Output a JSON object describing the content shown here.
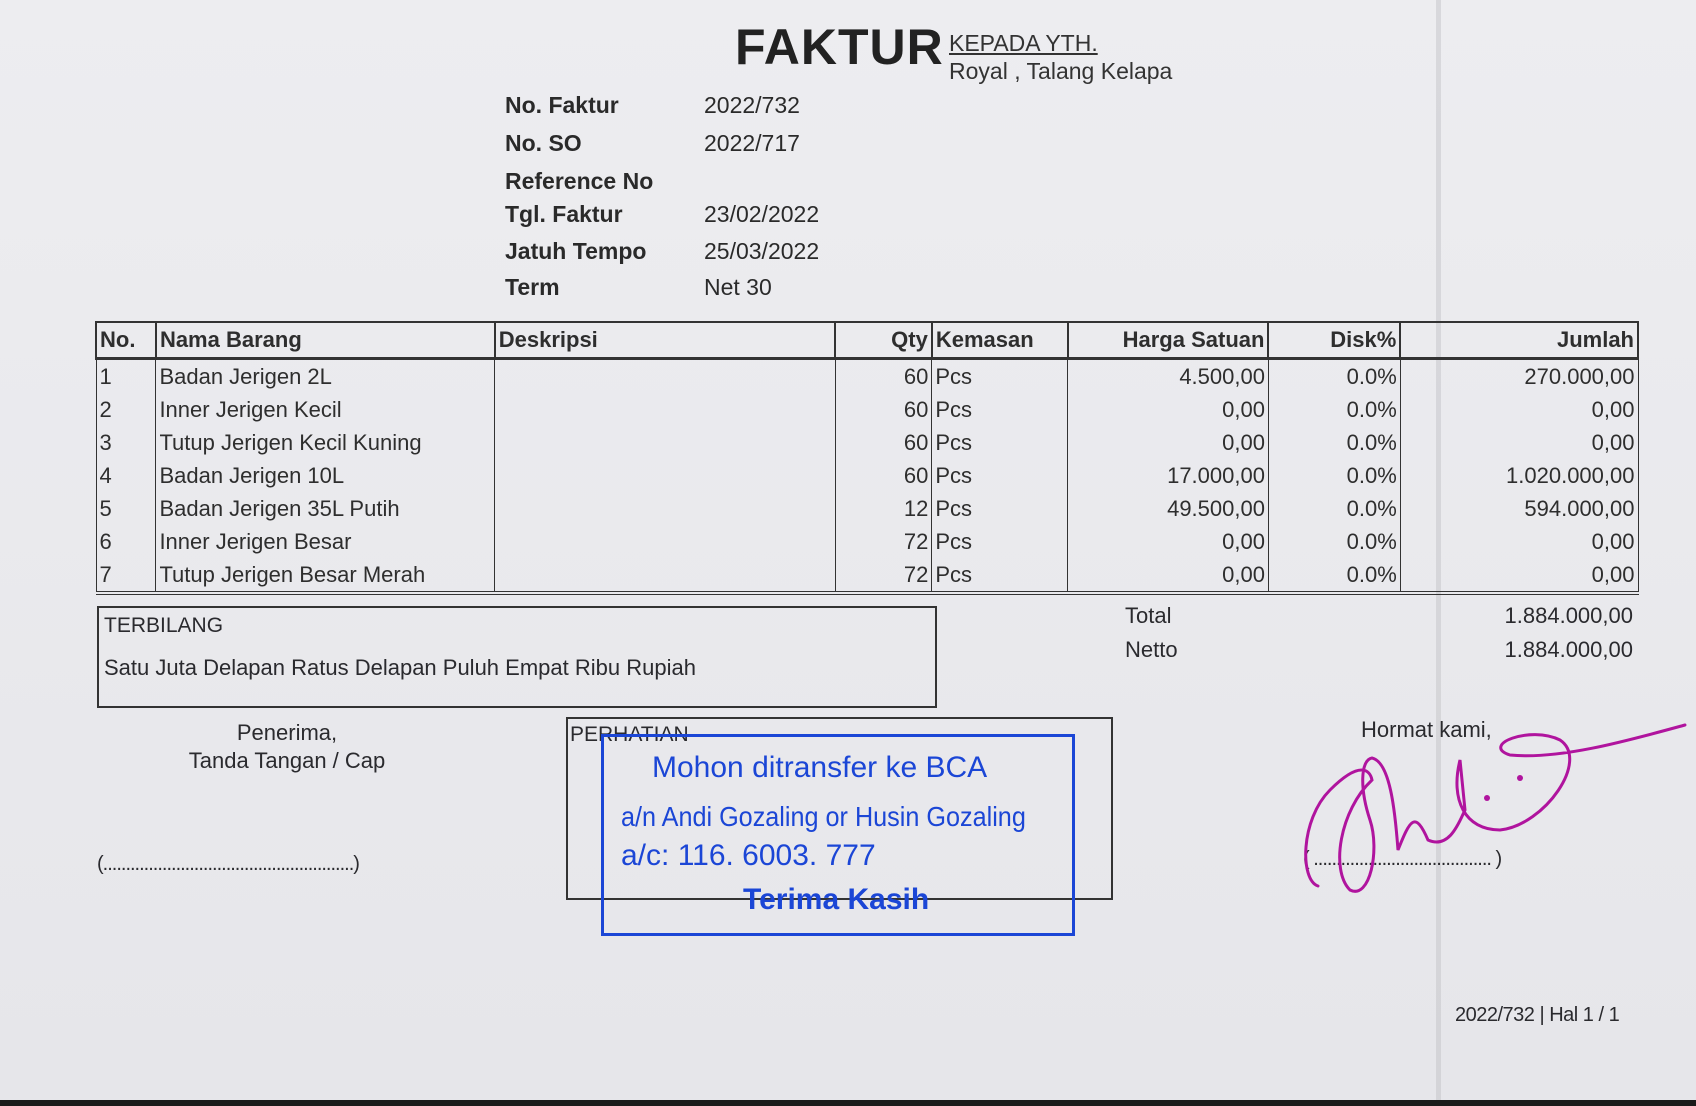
{
  "header": {
    "title": "FAKTUR",
    "recipient_label": "KEPADA YTH.",
    "recipient": "Royal , Talang Kelapa"
  },
  "meta": [
    {
      "label": "No. Faktur",
      "value": "2022/732"
    },
    {
      "label": "No. SO",
      "value": "2022/717"
    },
    {
      "label": "Reference No",
      "value": ""
    },
    {
      "label": "Tgl. Faktur",
      "value": "23/02/2022"
    },
    {
      "label": "Jatuh Tempo",
      "value": "25/03/2022"
    },
    {
      "label": "Term",
      "value": "Net 30"
    }
  ],
  "table": {
    "headers": [
      "No.",
      "Nama Barang",
      "Deskripsi",
      "Qty",
      "Kemasan",
      "Harga Satuan",
      "Disk%",
      "Jumlah"
    ],
    "rows": [
      [
        "1",
        "Badan Jerigen 2L",
        "",
        "60",
        "Pcs",
        "4.500,00",
        "0.0%",
        "270.000,00"
      ],
      [
        "2",
        "Inner Jerigen Kecil",
        "",
        "60",
        "Pcs",
        "0,00",
        "0.0%",
        "0,00"
      ],
      [
        "3",
        "Tutup Jerigen Kecil Kuning",
        "",
        "60",
        "Pcs",
        "0,00",
        "0.0%",
        "0,00"
      ],
      [
        "4",
        "Badan Jerigen 10L",
        "",
        "60",
        "Pcs",
        "17.000,00",
        "0.0%",
        "1.020.000,00"
      ],
      [
        "5",
        "Badan Jerigen 35L Putih",
        "",
        "12",
        "Pcs",
        "49.500,00",
        "0.0%",
        "594.000,00"
      ],
      [
        "6",
        "Inner Jerigen Besar",
        "",
        "72",
        "Pcs",
        "0,00",
        "0.0%",
        "0,00"
      ],
      [
        "7",
        "Tutup Jerigen Besar Merah",
        "",
        "72",
        "Pcs",
        "0,00",
        "0.0%",
        "0,00"
      ]
    ]
  },
  "terbilang": {
    "label": "TERBILANG",
    "text": "Satu Juta Delapan Ratus Delapan Puluh Empat Ribu Rupiah"
  },
  "totals": {
    "total_label": "Total",
    "total_value": "1.884.000,00",
    "netto_label": "Netto",
    "netto_value": "1.884.000,00"
  },
  "receiver": {
    "line1": "Penerima,",
    "line2": "Tanda Tangan / Cap",
    "signature_line": "(.......................................................)"
  },
  "notice": {
    "label": "PERHATIAN",
    "stamp_line1": "Mohon ditransfer ke BCA",
    "stamp_line2": "a/n  Andi Gozaling or Husin Gozaling",
    "stamp_line3": "a/c: 116. 6003. 777",
    "stamp_line4": "Terima Kasih",
    "stamp_color": "#1b46d6"
  },
  "sender": {
    "closing": "Hormat kami,",
    "signature_line": "( ....................................... )",
    "signature_color": "#b0149e"
  },
  "footer": {
    "page_ref": "2022/732 | Hal 1 / 1"
  }
}
